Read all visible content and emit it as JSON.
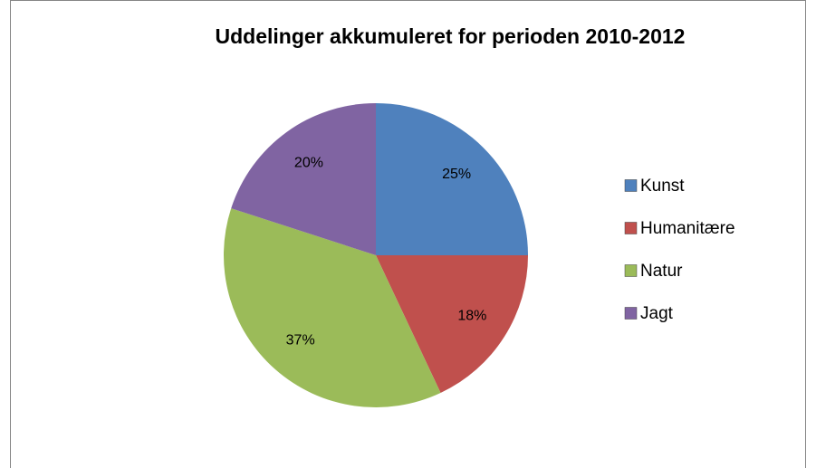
{
  "chart_data": {
    "type": "pie",
    "title": "Uddelinger akkumuleret  for perioden 2010-2012",
    "categories": [
      "Kunst",
      "Humanitære",
      "Natur",
      "Jagt"
    ],
    "values": [
      25,
      18,
      37,
      20
    ],
    "value_labels": [
      "25%",
      "18%",
      "37%",
      "20%"
    ],
    "colors": [
      "#4f81bd",
      "#c0504d",
      "#9bbb59",
      "#8064a2"
    ],
    "legend": "right"
  }
}
